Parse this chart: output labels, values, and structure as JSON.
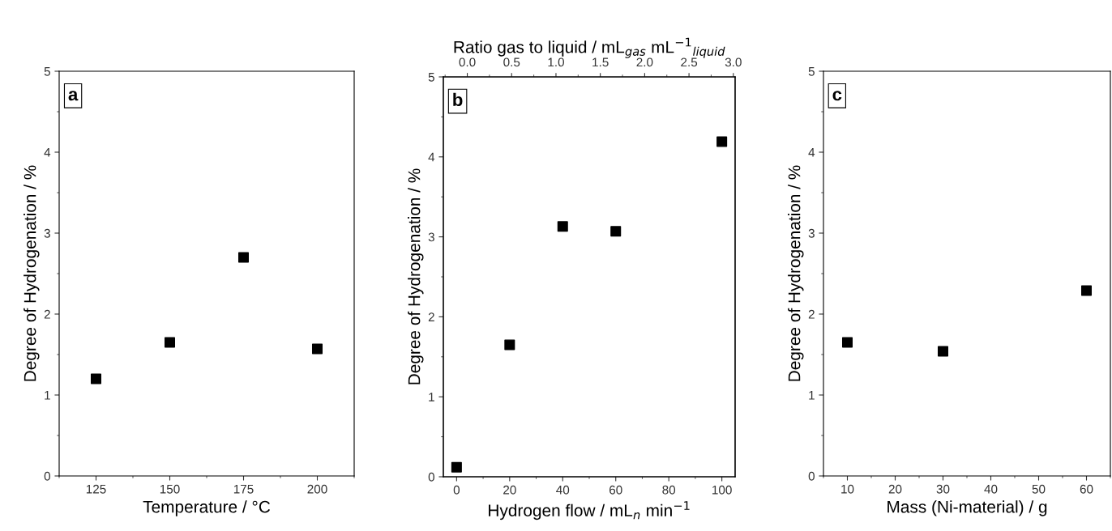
{
  "chart_data": [
    {
      "type": "scatter",
      "xlabel": "Temperature / °C",
      "ylabel": "Degree of Hydrogenation / %",
      "annotations": [
        "a"
      ],
      "marker": "square",
      "grid": false,
      "legend": false,
      "x": [
        125,
        150,
        175,
        200
      ],
      "xlim": [
        112.5,
        212.5
      ],
      "xticks": [
        125,
        150,
        175,
        200
      ],
      "ylim": [
        0,
        5
      ],
      "yticks": [
        0,
        1,
        2,
        3,
        4,
        5
      ],
      "series": [
        {
          "color": "#000000",
          "values": [
            1.2,
            1.65,
            2.7,
            1.57
          ]
        }
      ]
    },
    {
      "type": "scatter",
      "xlabel": "Hydrogen flow / mL$_{n}$ min$^{−1}$",
      "ylabel": "Degree of Hydrogenation / %",
      "x2label": "Ratio gas to liquid / mL$_{gas}$ mL$^{−1}$$_{liquid}$",
      "annotations": [
        "b"
      ],
      "marker": "square",
      "grid": false,
      "legend": false,
      "x": [
        0,
        20,
        40,
        60,
        100
      ],
      "xlim": [
        -5,
        105
      ],
      "xticks": [
        0,
        20,
        40,
        60,
        80,
        100
      ],
      "x2lim": [
        -0.27,
        3.02
      ],
      "x2ticks": [
        {
          "value": 0,
          "label": "0.0"
        },
        0.5,
        {
          "value": 1,
          "label": "1.0"
        },
        1.5,
        {
          "value": 2,
          "label": "2.0"
        },
        2.5,
        {
          "value": 3,
          "label": "3.0"
        }
      ],
      "ylim": [
        0,
        5
      ],
      "yticks": [
        0,
        1,
        2,
        3,
        4,
        5
      ],
      "series": [
        {
          "color": "#000000",
          "values": [
            0.12,
            1.65,
            3.13,
            3.07,
            4.19
          ]
        }
      ]
    },
    {
      "type": "scatter",
      "xlabel": "Mass (Ni-material) / g",
      "ylabel": "Degree of Hydrogenation / %",
      "annotations": [
        "c"
      ],
      "marker": "square",
      "grid": false,
      "legend": false,
      "x": [
        10,
        30,
        60
      ],
      "xlim": [
        5,
        65
      ],
      "xticks": [
        10,
        20,
        30,
        40,
        50,
        60
      ],
      "ylim": [
        0,
        5
      ],
      "yticks": [
        0,
        1,
        2,
        3,
        4,
        5
      ],
      "series": [
        {
          "color": "#000000",
          "values": [
            1.65,
            1.54,
            2.29
          ]
        }
      ]
    }
  ]
}
